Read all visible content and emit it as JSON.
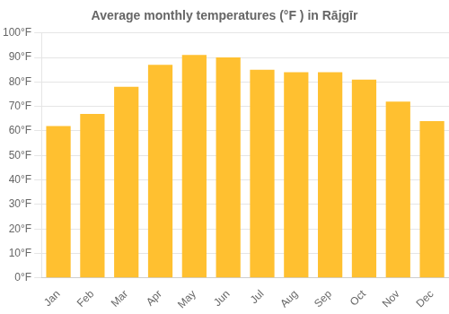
{
  "chart_data": {
    "type": "bar",
    "title": "Average monthly temperatures (°F ) in Rājgīr",
    "categories": [
      "Jan",
      "Feb",
      "Mar",
      "Apr",
      "May",
      "Jun",
      "Jul",
      "Aug",
      "Sep",
      "Oct",
      "Nov",
      "Dec"
    ],
    "values": [
      62,
      67,
      78,
      87,
      91,
      90,
      85,
      84,
      84,
      81,
      72,
      64
    ],
    "color": "#FFC030",
    "ylim": [
      0,
      100
    ],
    "yticks": [
      {
        "value": 0,
        "label": "0°F"
      },
      {
        "value": 10,
        "label": "10°F"
      },
      {
        "value": 20,
        "label": "20°F"
      },
      {
        "value": 30,
        "label": "30°F"
      },
      {
        "value": 40,
        "label": "40°F"
      },
      {
        "value": 50,
        "label": "50°F"
      },
      {
        "value": 60,
        "label": "60°F"
      },
      {
        "value": 70,
        "label": "70°F"
      },
      {
        "value": 80,
        "label": "80°F"
      },
      {
        "value": 90,
        "label": "90°F"
      },
      {
        "value": 100,
        "label": "100°F"
      }
    ],
    "grid": true
  }
}
